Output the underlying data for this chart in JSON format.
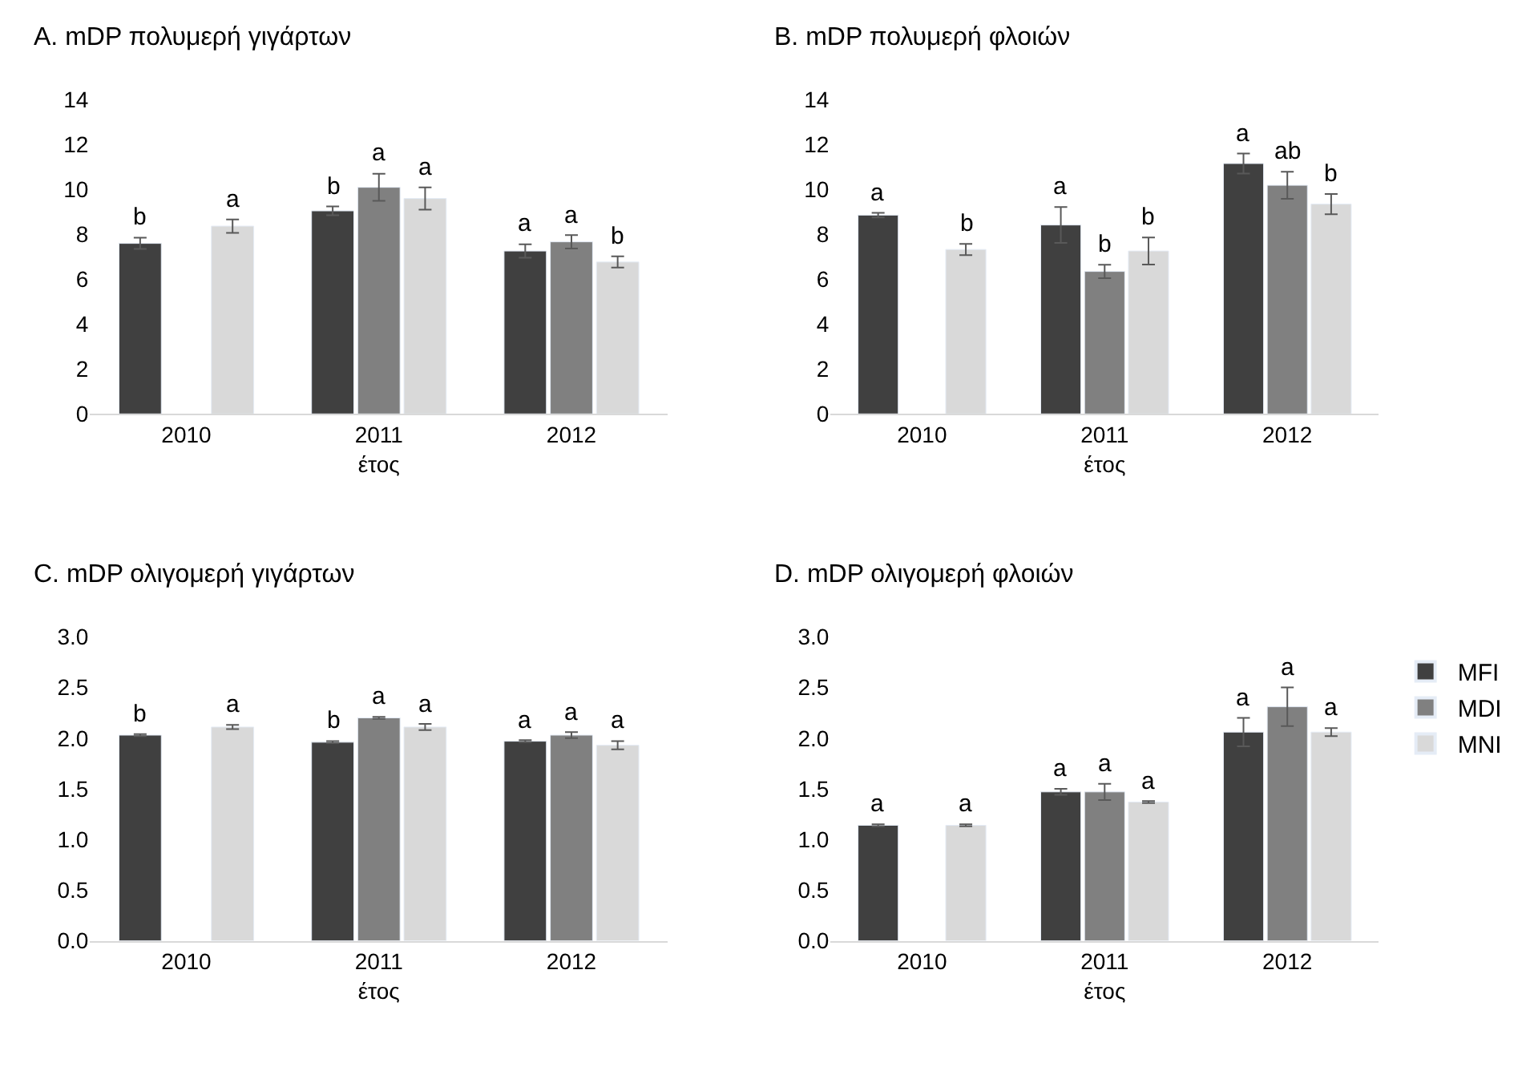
{
  "chart_data": [
    {
      "type": "bar",
      "title": "A. mDP πολυμερή γιγάρτων",
      "xlabel": "έτος",
      "categories": [
        "2010",
        "2011",
        "2012"
      ],
      "ylim": [
        0,
        14
      ],
      "yticks": [
        0,
        2,
        4,
        6,
        8,
        10,
        12,
        14
      ],
      "grid": false,
      "legend": false,
      "series": [
        {
          "color": "#404040",
          "values": [
            7.6,
            9.05,
            7.26
          ],
          "errors": [
            0.25,
            0.2,
            0.3
          ],
          "value_labels": [
            "b",
            "b",
            "a"
          ]
        },
        {
          "color": "#808080",
          "values": [
            null,
            10.1,
            7.67
          ],
          "errors": [
            null,
            0.6,
            0.3
          ],
          "value_labels": [
            null,
            "a",
            "a"
          ]
        },
        {
          "color": "#d9d9d9",
          "values": [
            8.37,
            9.6,
            6.77
          ],
          "errors": [
            0.3,
            0.5,
            0.25
          ],
          "value_labels": [
            "a",
            "a",
            "b"
          ]
        }
      ]
    },
    {
      "type": "bar",
      "title": "B. mDP πολυμερή φλοιών",
      "xlabel": "έτος",
      "categories": [
        "2010",
        "2011",
        "2012"
      ],
      "ylim": [
        0,
        14
      ],
      "yticks": [
        0,
        2,
        4,
        6,
        8,
        10,
        12,
        14
      ],
      "grid": false,
      "legend": false,
      "series": [
        {
          "color": "#404040",
          "values": [
            8.86,
            8.42,
            11.16
          ],
          "errors": [
            0.1,
            0.8,
            0.45
          ],
          "value_labels": [
            "a",
            "a",
            "a"
          ]
        },
        {
          "color": "#808080",
          "values": [
            null,
            6.35,
            10.19
          ],
          "errors": [
            null,
            0.3,
            0.6
          ],
          "value_labels": [
            null,
            "b",
            "ab"
          ]
        },
        {
          "color": "#d9d9d9",
          "values": [
            7.33,
            7.26,
            9.35
          ],
          "errors": [
            0.25,
            0.6,
            0.45
          ],
          "value_labels": [
            "b",
            "b",
            "b"
          ]
        }
      ]
    },
    {
      "type": "bar",
      "title": "C. mDP ολιγομερή γιγάρτων",
      "xlabel": "έτος",
      "categories": [
        "2010",
        "2011",
        "2012"
      ],
      "ylim": [
        0,
        3
      ],
      "yticks": [
        {
          "value": 0,
          "label": "0.0"
        },
        {
          "value": 0.5,
          "label": "0.5"
        },
        {
          "value": 1,
          "label": "1.0"
        },
        {
          "value": 1.5,
          "label": "1.5"
        },
        {
          "value": 2,
          "label": "2.0"
        },
        {
          "value": 2.5,
          "label": "2.5"
        },
        {
          "value": 3,
          "label": "3.0"
        }
      ],
      "grid": false,
      "legend": false,
      "series": [
        {
          "color": "#404040",
          "values": [
            2.03,
            1.96,
            1.97
          ],
          "errors": [
            0.01,
            0.01,
            0.01
          ],
          "value_labels": [
            "b",
            "b",
            "a"
          ]
        },
        {
          "color": "#808080",
          "values": [
            null,
            2.2,
            2.03
          ],
          "errors": [
            null,
            0.01,
            0.03
          ],
          "value_labels": [
            null,
            "a",
            "a"
          ]
        },
        {
          "color": "#d9d9d9",
          "values": [
            2.11,
            2.11,
            1.93
          ],
          "errors": [
            0.02,
            0.03,
            0.04
          ],
          "value_labels": [
            "a",
            "a",
            "a"
          ]
        }
      ]
    },
    {
      "type": "bar",
      "title": "D. mDP ολιγομερή φλοιών",
      "xlabel": "έτος",
      "categories": [
        "2010",
        "2011",
        "2012"
      ],
      "ylim": [
        0,
        3
      ],
      "yticks": [
        {
          "value": 0,
          "label": "0.0"
        },
        {
          "value": 0.5,
          "label": "0.5"
        },
        {
          "value": 1,
          "label": "1.0"
        },
        {
          "value": 1.5,
          "label": "1.5"
        },
        {
          "value": 2,
          "label": "2.0"
        },
        {
          "value": 2.5,
          "label": "2.5"
        },
        {
          "value": 3,
          "label": "3.0"
        }
      ],
      "grid": false,
      "legend": "right",
      "series": [
        {
          "name": "MFI",
          "color": "#404040",
          "values": [
            1.14,
            1.47,
            2.06
          ],
          "errors": [
            0.01,
            0.03,
            0.14
          ],
          "value_labels": [
            "a",
            "a",
            "a"
          ]
        },
        {
          "name": "MDI",
          "color": "#808080",
          "values": [
            null,
            1.47,
            2.31
          ],
          "errors": [
            null,
            0.08,
            0.19
          ],
          "value_labels": [
            null,
            "a",
            "a"
          ]
        },
        {
          "name": "MNI",
          "color": "#d9d9d9",
          "values": [
            1.14,
            1.37,
            2.06
          ],
          "errors": [
            0.01,
            0.01,
            0.04
          ],
          "value_labels": [
            "a",
            "a",
            "a"
          ]
        }
      ]
    }
  ]
}
